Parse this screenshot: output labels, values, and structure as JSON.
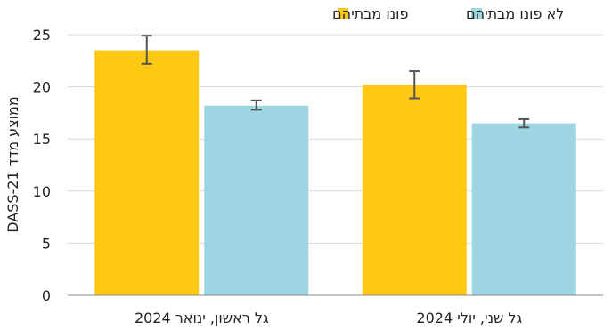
{
  "chart_data": {
    "type": "bar",
    "categories": [
      "גל ראשון, ינואר 2024",
      "גל שני, יולי 2024"
    ],
    "series": [
      {
        "name": "פונו מבתיהם",
        "values": [
          23.5,
          20.2
        ],
        "error_low": [
          22.2,
          18.9
        ],
        "error_high": [
          24.9,
          21.5
        ],
        "color": "#FFC813"
      },
      {
        "name": "לא פונו מבתיהם",
        "values": [
          18.2,
          16.5
        ],
        "error_low": [
          17.8,
          16.1
        ],
        "error_high": [
          18.7,
          16.9
        ],
        "color": "#9DD6E2"
      }
    ],
    "ylabel": "ממוצע מדד DASS-21",
    "xlabel": "",
    "ylim": [
      0,
      25
    ],
    "yticks": [
      0,
      5,
      10,
      15,
      20,
      25
    ],
    "grid": true,
    "legend_position": "top-center",
    "error_bar_color": "#555555",
    "grid_color": "#D9D9D9",
    "axis_color": "#888888"
  }
}
